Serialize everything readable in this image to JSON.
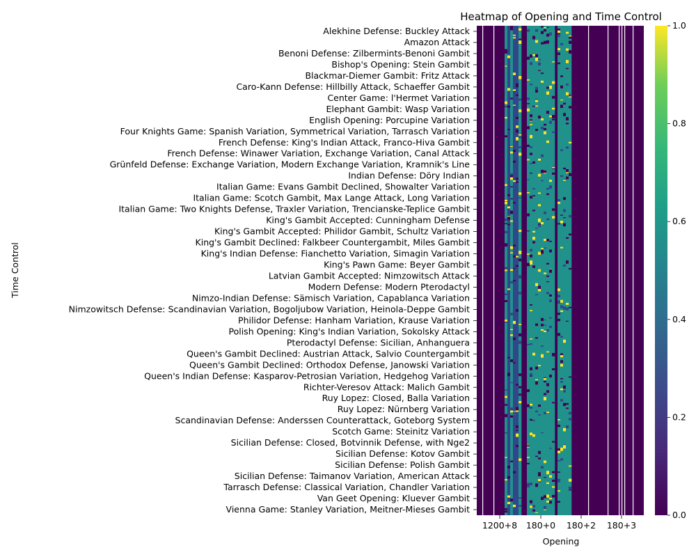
{
  "chart_data": {
    "type": "heatmap",
    "title": "Heatmap of Opening and Time Control",
    "xlabel": "Opening",
    "ylabel": "Time Control",
    "x_tick_labels": [
      "1200+8",
      "180+0",
      "180+2",
      "180+3"
    ],
    "y_tick_labels": [
      "Alekhine Defense: Buckley Attack",
      "Amazon Attack",
      "Benoni Defense: Zilbermints-Benoni Gambit",
      "Bishop's Opening: Stein Gambit",
      "Blackmar-Diemer Gambit: Fritz Attack",
      "Caro-Kann Defense: Hillbilly Attack, Schaeffer Gambit",
      "Center Game: l'Hermet Variation",
      "Elephant Gambit: Wasp Variation",
      "English Opening: Porcupine Variation",
      "Four Knights Game: Spanish Variation, Symmetrical Variation, Tarrasch Variation",
      "French Defense: King's Indian Attack, Franco-Hiva Gambit",
      "French Defense: Winawer Variation, Exchange Variation, Canal Attack",
      "Grünfeld Defense: Exchange Variation, Modern Exchange Variation, Kramnik's Line",
      "Indian Defense: Döry Indian",
      "Italian Game: Evans Gambit Declined, Showalter Variation",
      "Italian Game: Scotch Gambit, Max Lange Attack, Long Variation",
      "Italian Game: Two Knights Defense, Traxler Variation, Trencianske-Teplice Gambit",
      "King's Gambit Accepted: Cunningham Defense",
      "King's Gambit Accepted: Philidor Gambit, Schultz Variation",
      "King's Gambit Declined: Falkbeer Countergambit, Miles Gambit",
      "King's Indian Defense: Fianchetto Variation, Simagin Variation",
      "King's Pawn Game: Beyer Gambit",
      "Latvian Gambit Accepted: Nimzowitsch Attack",
      "Modern Defense: Modern Pterodactyl",
      "Nimzo-Indian Defense: Sämisch Variation, Capablanca Variation",
      "Nimzowitsch Defense: Scandinavian Variation, Bogoljubow Variation, Heinola-Deppe Gambit",
      "Philidor Defense: Hanham Variation, Krause Variation",
      "Polish Opening: King's Indian Variation, Sokolsky Attack",
      "Pterodactyl Defense: Sicilian, Anhanguera",
      "Queen's Gambit Declined: Austrian Attack, Salvio Countergambit",
      "Queen's Gambit Declined: Orthodox Defense, Janowski Variation",
      "Queen's Indian Defense: Kasparov-Petrosian Variation, Hedgehog Variation",
      "Richter-Veresov Attack: Malich Gambit",
      "Ruy Lopez: Closed, Balla Variation",
      "Ruy Lopez: Nürnberg Variation",
      "Scandinavian Defense: Anderssen Counterattack, Goteborg System",
      "Scotch Game: Steinitz Variation",
      "Sicilian Defense: Closed, Botvinnik Defense, with Nge2",
      "Sicilian Defense: Kotov Gambit",
      "Sicilian Defense: Polish Gambit",
      "Sicilian Defense: Taimanov Variation, American Attack",
      "Tarrasch Defense: Classical Variation, Chandler Variation",
      "Van Geet Opening: Kluever Gambit",
      "Vienna Game: Stanley Variation, Meitner-Mieses Gambit"
    ],
    "colorbar": {
      "colormap": "viridis",
      "range": [
        0.0,
        1.0
      ],
      "ticks": [
        "0.0",
        "0.2",
        "0.4",
        "0.6",
        "0.8",
        "1.0"
      ]
    },
    "cell_annotation": "0.00",
    "columns_text": "dense columns of time controls; mostly 0 (dark purple), with bands of 0.5 (teal) and 1.0 (yellow)"
  }
}
